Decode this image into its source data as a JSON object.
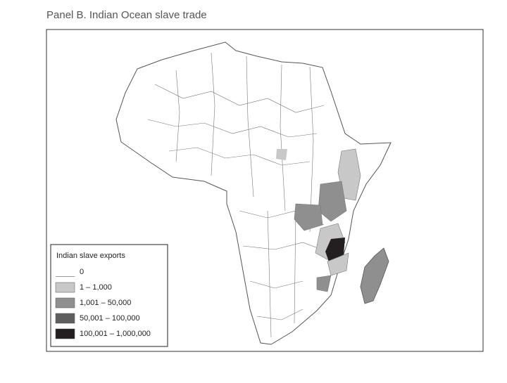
{
  "title": "Panel B. Indian Ocean slave trade",
  "legend": {
    "title": "Indian slave exports",
    "items": [
      {
        "label": "0",
        "color": "#ffffff"
      },
      {
        "label": "1 – 1,000",
        "color": "#c8c8c8"
      },
      {
        "label": "1,001 – 50,000",
        "color": "#8f8f8f"
      },
      {
        "label": "50,001 – 100,000",
        "color": "#5e5e5e"
      },
      {
        "label": "100,001 – 1,000,000",
        "color": "#231f20"
      }
    ]
  }
}
